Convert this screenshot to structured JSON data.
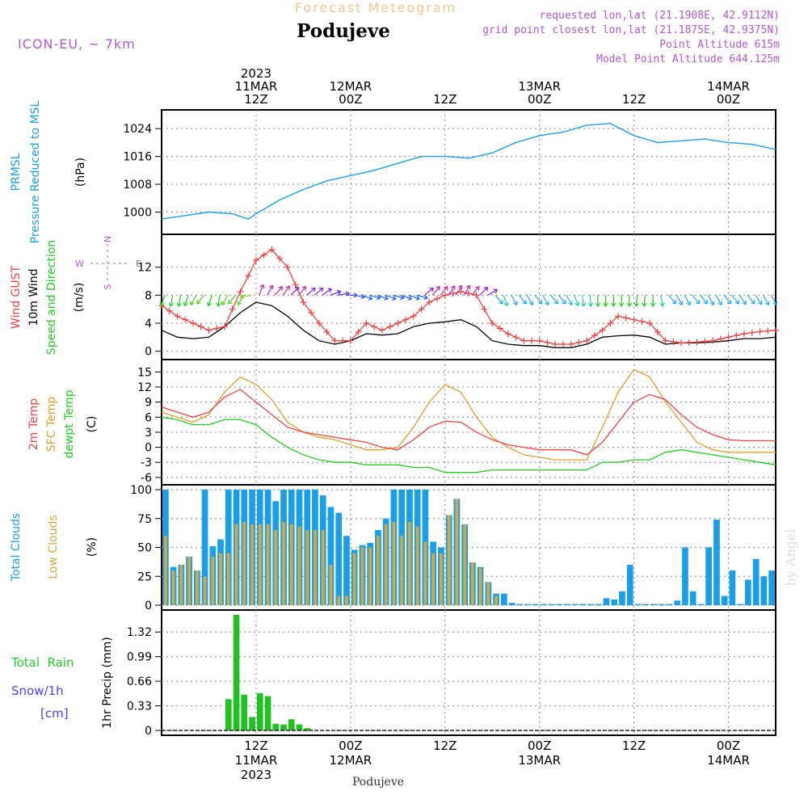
{
  "header": {
    "top_title": "Forecast Meteogram",
    "location_title": "Podujeve",
    "model": "ICON-EU, ~ 7km",
    "requested": "requested lon,lat (21.1908E, 42.9112N)",
    "grid_point": "grid point closest lon,lat (21.1875E, 42.9375N)",
    "point_altitude": "Point Altitude 615m",
    "model_altitude": "Model Point Altitude 644.125m"
  },
  "footer": {
    "place": "Podujeve",
    "watermark": "by Angel"
  },
  "time_axis": {
    "top_ticks": [
      {
        "t": 12,
        "lines": [
          "2023",
          "11MAR",
          "12Z"
        ]
      },
      {
        "t": 24,
        "lines": [
          "12MAR",
          "00Z"
        ]
      },
      {
        "t": 36,
        "lines": [
          "12Z"
        ]
      },
      {
        "t": 48,
        "lines": [
          "13MAR",
          "00Z"
        ]
      },
      {
        "t": 60,
        "lines": [
          "12Z"
        ]
      },
      {
        "t": 72,
        "lines": [
          "14MAR",
          "00Z"
        ]
      }
    ],
    "bottom_ticks": [
      {
        "t": 12,
        "lines": [
          "12Z",
          "11MAR",
          "2023"
        ]
      },
      {
        "t": 24,
        "lines": [
          "00Z",
          "12MAR"
        ]
      },
      {
        "t": 36,
        "lines": [
          "12Z"
        ]
      },
      {
        "t": 48,
        "lines": [
          "00Z",
          "13MAR"
        ]
      },
      {
        "t": 60,
        "lines": [
          "12Z"
        ]
      },
      {
        "t": 72,
        "lines": [
          "00Z",
          "14MAR"
        ]
      }
    ]
  },
  "panels": {
    "pressure": {
      "label1": "PRMSL",
      "label2": "Pressure Reduced to MSL",
      "unit": "(hPa)",
      "ticks": [
        "1000",
        "1008",
        "1016",
        "1024"
      ]
    },
    "wind": {
      "label_gust": "Wind GUST",
      "label_wind": "10m Wind",
      "label_dir": "Speed and Direction",
      "unit": "(m/s)",
      "ticks": [
        "0",
        "4",
        "8",
        "12"
      ],
      "compass": {
        "n": "N",
        "s": "S",
        "w": "W",
        "e": "E"
      }
    },
    "temp": {
      "label_2m": "2m Temp",
      "label_sfc": "SFC Temp",
      "label_dew": "dewpt Temp",
      "unit": "(C)",
      "ticks": [
        "-6",
        "-3",
        "0",
        "3",
        "6",
        "9",
        "12",
        "15"
      ]
    },
    "clouds": {
      "label_total": "Total Clouds",
      "label_low": "Low Clouds",
      "unit": "(%)",
      "ticks": [
        "0",
        "25",
        "50",
        "75",
        "100"
      ]
    },
    "precip": {
      "label_rain": "Total  Rain",
      "label_snow": "Snow/1h",
      "label_cm": "[cm]",
      "unit": "1hr Precip (mm)",
      "ticks": [
        "0",
        "0.33",
        "0.66",
        "0.99",
        "1.32"
      ]
    }
  },
  "colors": {
    "pressure": "#1a9ee8",
    "gust": "#ee4444",
    "wind": "#000000",
    "t2m": "#ee4444",
    "tsfc": "#e0a030",
    "dewpt": "#22cc22",
    "total_clouds": "#1a9ee8",
    "low_clouds": "#d8a840",
    "rain": "#22c022",
    "snow": "#4444ee",
    "model": "#b05ad0",
    "title_faint": "#f0c890"
  },
  "chart_data": [
    {
      "type": "line",
      "title": "PRMSL Pressure Reduced to MSL",
      "ylabel": "(hPa)",
      "ylim": [
        995,
        1028
      ],
      "x_hours": [
        0,
        3,
        6,
        9,
        11,
        12,
        15,
        18,
        21,
        24,
        27,
        30,
        33,
        36,
        39,
        42,
        45,
        48,
        51,
        54,
        57,
        60,
        63,
        66,
        69,
        72,
        75,
        78
      ],
      "series": [
        {
          "name": "PRMSL",
          "values": [
            998,
            999,
            1000,
            999.5,
            998,
            999.5,
            1003.5,
            1006.5,
            1009,
            1010.5,
            1012,
            1014,
            1016,
            1016,
            1015.5,
            1017,
            1020,
            1022,
            1023,
            1025,
            1025.5,
            1022,
            1020,
            1020.5,
            1021,
            1020,
            1019.5,
            1018
          ]
        }
      ]
    },
    {
      "type": "line",
      "title": "Wind GUST / 10m Wind Speed and Direction",
      "ylabel": "(m/s)",
      "ylim": [
        -0.5,
        16
      ],
      "x_hours": [
        0,
        2,
        4,
        6,
        8,
        10,
        12,
        14,
        16,
        18,
        20,
        22,
        24,
        26,
        28,
        30,
        32,
        34,
        36,
        38,
        40,
        42,
        44,
        46,
        48,
        50,
        52,
        54,
        56,
        58,
        60,
        62,
        64,
        66,
        68,
        70,
        72,
        74,
        76,
        78
      ],
      "series": [
        {
          "name": "Wind GUST",
          "values": [
            6.5,
            5,
            4,
            3,
            3.5,
            8.5,
            13,
            14.5,
            12,
            7,
            4,
            1.5,
            1.5,
            4,
            3,
            4,
            5,
            7,
            8,
            8.5,
            8,
            4,
            2.5,
            1.5,
            1.5,
            1,
            1,
            1.5,
            3,
            5,
            4.5,
            4,
            1.5,
            1.2,
            1.3,
            1.5,
            2,
            2.5,
            2.8,
            3
          ]
        },
        {
          "name": "10m Wind",
          "values": [
            3,
            2,
            1.8,
            2,
            3.5,
            5.5,
            7,
            6.5,
            5,
            3,
            1.5,
            1,
            1.5,
            2.5,
            2.3,
            2.5,
            3.5,
            4,
            4.2,
            4.5,
            3.5,
            1.5,
            1,
            0.8,
            0.8,
            0.5,
            0.5,
            1,
            2,
            2.2,
            2.3,
            2,
            1,
            1.2,
            1.2,
            1.3,
            1.5,
            1.8,
            1.8,
            2
          ]
        }
      ]
    },
    {
      "type": "line",
      "title": "2m Temp / SFC Temp / dewpt Temp",
      "ylabel": "(C)",
      "ylim": [
        -6.5,
        16.5
      ],
      "x_hours": [
        0,
        2,
        4,
        6,
        8,
        10,
        12,
        14,
        16,
        18,
        20,
        22,
        24,
        26,
        28,
        30,
        32,
        34,
        36,
        38,
        40,
        42,
        44,
        46,
        48,
        50,
        52,
        54,
        56,
        58,
        60,
        62,
        64,
        66,
        68,
        70,
        72,
        74,
        76,
        78
      ],
      "series": [
        {
          "name": "2m Temp",
          "values": [
            8,
            7,
            6,
            7,
            10,
            11.5,
            9,
            6.5,
            4,
            3,
            2.5,
            2,
            1.5,
            1,
            0,
            -0.5,
            1.5,
            4,
            5.2,
            5,
            3,
            1.5,
            0.5,
            0,
            -0.5,
            -0.5,
            -0.5,
            -1.5,
            1,
            5,
            9,
            10.5,
            9.5,
            6.5,
            4,
            2.5,
            1.5,
            1.3,
            1.3,
            1.3
          ]
        },
        {
          "name": "SFC Temp",
          "values": [
            7,
            6,
            5,
            6.5,
            11,
            14,
            12.5,
            9.5,
            5,
            3,
            2,
            1.5,
            0.5,
            -0.5,
            -0.5,
            0,
            4,
            9,
            12.5,
            11,
            6,
            2,
            0,
            -1.5,
            -2,
            -2.5,
            -2.5,
            -2.5,
            4,
            11,
            15.5,
            14,
            9,
            5,
            1,
            -0.5,
            -1,
            -1,
            -1,
            -1
          ]
        },
        {
          "name": "dewpt Temp",
          "values": [
            6,
            5.5,
            4.5,
            4.5,
            5.5,
            5.5,
            4.5,
            2,
            0,
            -1.5,
            -2.5,
            -3,
            -3,
            -3.5,
            -3.5,
            -3.5,
            -4,
            -4,
            -5,
            -5,
            -5,
            -4.5,
            -4.5,
            -4.5,
            -4.5,
            -4.5,
            -4.5,
            -4.5,
            -3,
            -3,
            -2.5,
            -2.5,
            -1,
            -0.5,
            -1,
            -1.5,
            -2,
            -2.5,
            -3,
            -3.5
          ]
        }
      ]
    },
    {
      "type": "bar",
      "title": "Total Clouds / Low Clouds",
      "ylabel": "(%)",
      "ylim": [
        0,
        100
      ],
      "x_hours": [
        0,
        1,
        2,
        3,
        4,
        5,
        6,
        7,
        8,
        9,
        10,
        11,
        12,
        13,
        14,
        15,
        16,
        17,
        18,
        19,
        20,
        21,
        22,
        23,
        24,
        25,
        26,
        27,
        28,
        29,
        30,
        31,
        32,
        33,
        34,
        35,
        36,
        37,
        38,
        39,
        40,
        41,
        42,
        43,
        44,
        45,
        46,
        47,
        48,
        49,
        50,
        51,
        52,
        53,
        54,
        55,
        56,
        57,
        58,
        59,
        60,
        61,
        62,
        63,
        64,
        65,
        66,
        67,
        68,
        69,
        70,
        71,
        72,
        73,
        74,
        75,
        76,
        77
      ],
      "series": [
        {
          "name": "Total Clouds",
          "values": [
            100,
            33,
            35,
            42,
            30,
            100,
            51,
            57,
            100,
            100,
            100,
            100,
            100,
            100,
            90,
            100,
            100,
            100,
            100,
            100,
            95,
            85,
            80,
            60,
            48,
            52,
            54,
            65,
            75,
            100,
            100,
            100,
            100,
            100,
            55,
            50,
            78,
            92,
            70,
            37,
            33,
            20,
            10,
            10,
            2,
            1,
            1,
            1,
            1,
            1,
            1,
            1,
            1,
            1,
            1,
            1,
            6,
            5,
            12,
            35,
            1,
            1,
            1,
            1,
            1,
            4,
            50,
            12,
            1,
            50,
            74,
            8,
            30,
            1,
            22,
            40,
            25,
            30
          ]
        },
        {
          "name": "Low Clouds",
          "values": [
            60,
            30,
            35,
            42,
            30,
            25,
            42,
            45,
            45,
            70,
            72,
            70,
            70,
            70,
            65,
            72,
            70,
            68,
            65,
            65,
            65,
            35,
            8,
            8,
            45,
            50,
            50,
            60,
            70,
            72,
            60,
            72,
            68,
            55,
            45,
            45,
            78,
            92,
            70,
            37,
            32,
            20,
            8,
            0,
            0,
            0,
            0,
            0,
            0,
            0,
            0,
            0,
            0,
            0,
            0,
            0,
            0,
            0,
            0,
            0,
            0,
            0,
            0,
            0,
            0,
            0,
            0,
            0,
            0,
            0,
            0,
            0,
            0,
            0,
            0,
            0,
            0,
            0
          ]
        }
      ]
    },
    {
      "type": "bar",
      "title": "Total Rain / Snow/1h",
      "ylabel": "1hr Precip (mm)",
      "ylim": [
        0,
        1.55
      ],
      "x_hours": [
        8,
        9,
        10,
        11,
        12,
        13,
        14,
        15,
        16,
        17,
        18
      ],
      "series": [
        {
          "name": "Total Rain",
          "values": [
            0.42,
            1.55,
            0.48,
            0.18,
            0.5,
            0.46,
            0.09,
            0.08,
            0.15,
            0.08,
            0.03
          ]
        },
        {
          "name": "Snow/1h",
          "values": [
            0,
            0,
            0,
            0,
            0,
            0,
            0,
            0,
            0,
            0,
            0
          ]
        }
      ]
    }
  ],
  "wind_arrows": {
    "hours": [
      0,
      1,
      2,
      3,
      4,
      5,
      6,
      7,
      8,
      9,
      10,
      11,
      12,
      13,
      14,
      15,
      16,
      17,
      18,
      19,
      20,
      21,
      22,
      23,
      24,
      25,
      26,
      27,
      28,
      29,
      30,
      31,
      32,
      33,
      34,
      35,
      36,
      37,
      38,
      39,
      40,
      41,
      42,
      43,
      44,
      45,
      46,
      47,
      48,
      49,
      50,
      51,
      52,
      53,
      54,
      55,
      56,
      57,
      58,
      59,
      60,
      61,
      62,
      63,
      64,
      65,
      66,
      67,
      68,
      69,
      70,
      71,
      72,
      73,
      74,
      75,
      76,
      77
    ],
    "dir_deg": [
      20,
      10,
      10,
      20,
      30,
      40,
      20,
      10,
      30,
      40,
      30,
      80,
      200,
      210,
      220,
      215,
      225,
      220,
      230,
      230,
      235,
      250,
      260,
      270,
      280,
      290,
      285,
      290,
      290,
      285,
      290,
      290,
      285,
      230,
      220,
      220,
      215,
      210,
      210,
      220,
      225,
      240,
      320,
      340,
      330,
      320,
      330,
      320,
      330,
      320,
      320,
      330,
      340,
      350,
      355,
      0,
      0,
      0,
      0,
      0,
      5,
      5,
      0,
      350,
      320,
      330,
      330,
      320,
      320,
      330,
      330,
      320,
      320,
      325,
      320,
      325,
      330,
      330
    ]
  }
}
